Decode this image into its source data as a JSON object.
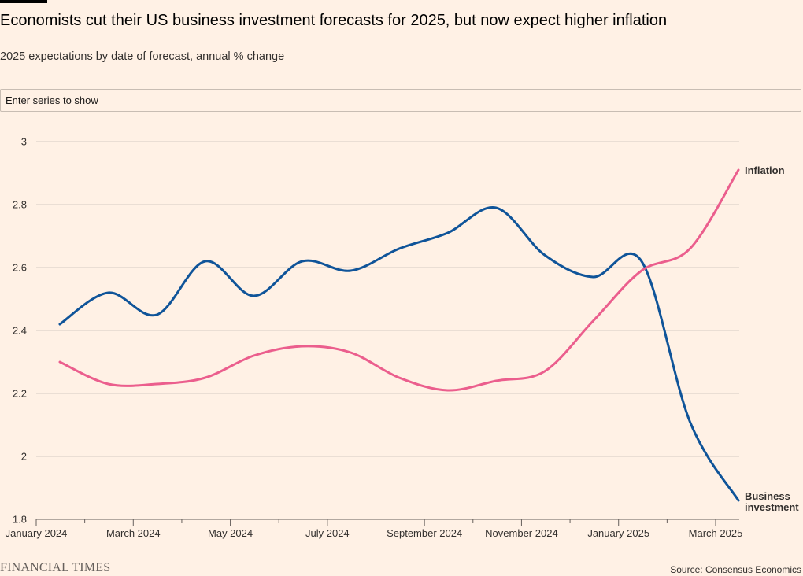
{
  "header": {
    "title": "Economists cut their US business investment forecasts for 2025, but now expect higher inflation",
    "subtitle": "2025 expectations by date of forecast, annual % change"
  },
  "search": {
    "placeholder": "Enter series to show"
  },
  "footer": {
    "brand": "FINANCIAL TIMES",
    "source": "Source: Consensus Economics"
  },
  "chart_data": {
    "type": "line",
    "title": "Economists cut their US business investment forecasts for 2025, but now expect higher inflation",
    "subtitle": "2025 expectations by date of forecast, annual % change",
    "xlabel": "",
    "ylabel": "",
    "ylim": [
      1.8,
      3.0
    ],
    "yticks": [
      1.8,
      2,
      2.2,
      2.4,
      2.6,
      2.8,
      3
    ],
    "ytick_labels": [
      "1.8",
      "2",
      "2.2",
      "2.4",
      "2.6",
      "2.8",
      "3"
    ],
    "x_tick_labels": [
      "January 2024",
      "March 2024",
      "May 2024",
      "July 2024",
      "September 2024",
      "November 2024",
      "January 2025",
      "March 2025"
    ],
    "x": [
      "Jan 2024",
      "Feb 2024",
      "Mar 2024",
      "Apr 2024",
      "May 2024",
      "Jun 2024",
      "Jul 2024",
      "Aug 2024",
      "Sep 2024",
      "Oct 2024",
      "Nov 2024",
      "Dec 2024",
      "Jan 2025",
      "Feb 2025",
      "Mar 2025"
    ],
    "grid": true,
    "legend": "direct labels at line ends",
    "series": [
      {
        "name": "Business investment",
        "color": "#0f5499",
        "values": [
          2.42,
          2.52,
          2.45,
          2.62,
          2.51,
          2.62,
          2.59,
          2.66,
          2.71,
          2.79,
          2.64,
          2.57,
          2.62,
          2.11,
          1.86
        ]
      },
      {
        "name": "Inflation",
        "color": "#eb5e8d",
        "values": [
          2.3,
          2.23,
          2.23,
          2.25,
          2.32,
          2.35,
          2.33,
          2.25,
          2.21,
          2.24,
          2.27,
          2.43,
          2.59,
          2.66,
          2.91
        ]
      }
    ]
  }
}
